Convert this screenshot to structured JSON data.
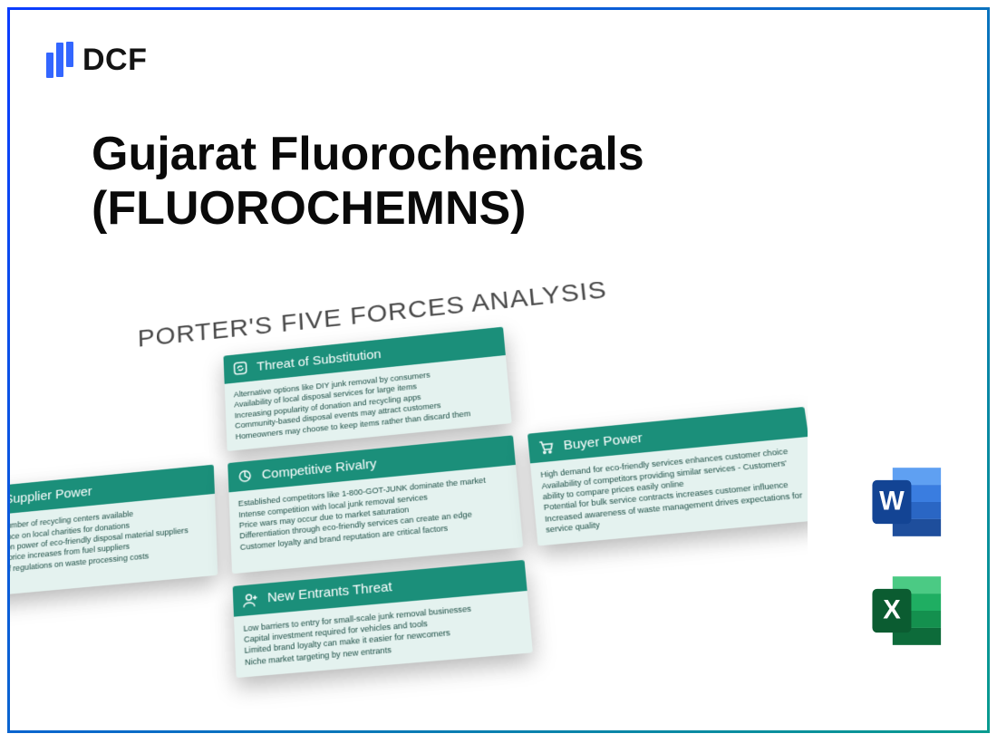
{
  "brand": {
    "logo_text": "DCF",
    "logo_bar_color": "#3366ff"
  },
  "page_title_line1": "Gujarat Fluorochemicals",
  "page_title_line2": "(FLUOROCHEMNS)",
  "diagram": {
    "title": "PORTER'S FIVE FORCES ANALYSIS",
    "header_bg": "#1b8f7a",
    "card_bg": "#e4f2ef",
    "text_color": "#1b4d44",
    "cards": {
      "substitution": {
        "title": "Threat of Substitution",
        "icon": "refresh-icon",
        "items": [
          "Alternative options like DIY junk removal by consumers",
          "Availability of local disposal services for large items",
          "Increasing popularity of donation and recycling apps",
          "Community-based disposal events may attract customers",
          "Homeowners may choose to keep items rather than discard them"
        ]
      },
      "supplier": {
        "title": "Supplier Power",
        "icon": "link-icon",
        "items": [
          "mited number of recycling centers available",
          "ependence on local charities for donations",
          "egotiation power of eco-friendly disposal material suppliers",
          "otential price increases from fuel suppliers",
          "mpact of regulations on waste processing costs"
        ]
      },
      "rivalry": {
        "title": "Competitive Rivalry",
        "icon": "pie-icon",
        "items": [
          "Established competitors like 1-800-GOT-JUNK dominate the market",
          "Intense competition with local junk removal services",
          "Price wars may occur due to market saturation",
          "Differentiation through eco-friendly services can create an edge",
          "Customer loyalty and brand reputation are critical factors"
        ]
      },
      "buyer": {
        "title": "Buyer Power",
        "icon": "cart-icon",
        "items": [
          "High demand for eco-friendly services enhances customer choice",
          "Availability of competitors providing similar services  - Customers' ability to compare prices easily online",
          "Potential for bulk service contracts increases customer influence",
          "Increased awareness of waste management drives expectations for service quality"
        ]
      },
      "entrants": {
        "title": "New Entrants Threat",
        "icon": "person-plus-icon",
        "items": [
          "Low barriers to entry for small-scale junk removal businesses",
          "Capital investment required for vehicles and tools",
          "Limited brand loyalty can make it easier for newcomers",
          "Niche market targeting by new entrants"
        ]
      }
    }
  },
  "app_icons": {
    "word": {
      "letter": "W",
      "colors": [
        "#1e4e9c",
        "#2a66c4",
        "#3a7de0",
        "#5fa0f2"
      ],
      "tab": "#134494"
    },
    "excel": {
      "letter": "X",
      "colors": [
        "#0d6b3a",
        "#14904e",
        "#1fae62",
        "#4bca84"
      ],
      "tab": "#0b5c31"
    }
  },
  "frame_gradient": [
    "#0a3cff",
    "#0a9b8f"
  ]
}
